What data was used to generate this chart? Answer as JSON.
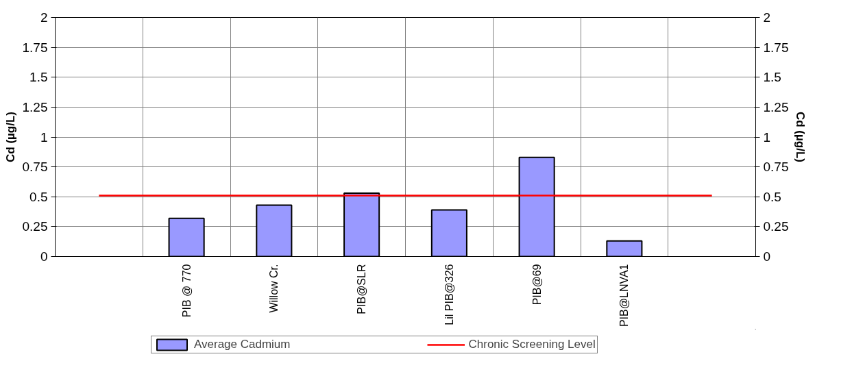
{
  "chart_data": {
    "type": "bar",
    "categories": [
      null,
      "PIB @ 770",
      "Willow Cr.",
      "PIB@SLR",
      "Lil PIB@326",
      "PIB@69",
      "PIB@LNVA1",
      null
    ],
    "series": [
      {
        "name": "Average Cadmium",
        "color": "#9999ff",
        "values": [
          null,
          0.32,
          0.43,
          0.53,
          0.39,
          0.83,
          0.13,
          null
        ]
      },
      {
        "name": "Chronic Screening Level",
        "type": "line",
        "color": "#ff0000",
        "values": [
          0.51,
          0.51,
          0.51,
          0.51,
          0.51,
          0.51,
          0.51,
          0.51
        ]
      }
    ],
    "ylabel": "Cd (µg/L)",
    "y2label": "Cd (µg/L)",
    "ylim": [
      0,
      2
    ],
    "yticks": [
      0,
      0.25,
      0.5,
      0.75,
      1,
      1.25,
      1.5,
      1.75,
      2
    ],
    "y2lim": [
      0,
      2
    ],
    "y2ticks": [
      0,
      0.25,
      0.5,
      0.75,
      1,
      1.25,
      1.5,
      1.75,
      2
    ],
    "grid": true,
    "legend": "bottom"
  }
}
